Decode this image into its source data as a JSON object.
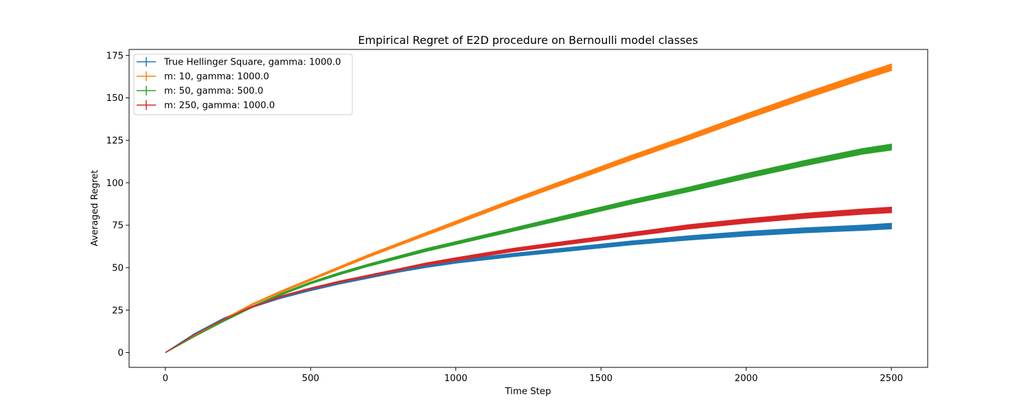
{
  "chart_data": {
    "type": "line",
    "title": "Empirical Regret of E2D procedure on Bernoulli model classes",
    "xlabel": "Time Step",
    "ylabel": "Averaged Regret",
    "xlim": [
      -125,
      2625
    ],
    "ylim": [
      -8.7,
      178.5
    ],
    "xticks": [
      0,
      500,
      1000,
      1500,
      2000,
      2500
    ],
    "yticks": [
      0,
      25,
      50,
      75,
      100,
      125,
      150,
      175
    ],
    "grid": false,
    "legend_position": "top-left",
    "x": [
      0,
      100,
      200,
      300,
      400,
      500,
      600,
      700,
      800,
      900,
      1000,
      1200,
      1400,
      1600,
      1800,
      2000,
      2200,
      2400,
      2500
    ],
    "series": [
      {
        "name": "True Hellinger Square, gamma: 1000.0",
        "color": "#1f77b4",
        "values": [
          0,
          11,
          20,
          27,
          32.5,
          37,
          41,
          44.5,
          48,
          51,
          53.5,
          57.5,
          61,
          64.5,
          67.5,
          70,
          72,
          73.5,
          74.5
        ],
        "err_low": [
          0,
          0.1,
          0.2,
          0.3,
          0.4,
          0.5,
          0.6,
          0.65,
          0.7,
          0.8,
          0.8,
          0.9,
          1.0,
          1.1,
          1.2,
          1.3,
          1.4,
          1.5,
          1.6
        ],
        "err_high": [
          0,
          0.1,
          0.2,
          0.3,
          0.4,
          0.5,
          0.6,
          0.65,
          0.7,
          0.8,
          0.8,
          0.9,
          1.0,
          1.1,
          1.2,
          1.3,
          1.4,
          1.5,
          1.6
        ]
      },
      {
        "name": "m: 10, gamma: 1000.0",
        "color": "#ff7f0e",
        "values": [
          0,
          10,
          19.5,
          28.5,
          36,
          43,
          50,
          57,
          63.5,
          70,
          76.5,
          89.5,
          102,
          114.5,
          126.5,
          139,
          151,
          162.5,
          168
        ],
        "err_low": [
          0,
          0.1,
          0.2,
          0.3,
          0.4,
          0.5,
          0.6,
          0.7,
          0.7,
          0.8,
          0.9,
          1.0,
          1.2,
          1.3,
          1.4,
          1.5,
          1.7,
          1.8,
          1.9
        ],
        "err_high": [
          0,
          0.1,
          0.2,
          0.3,
          0.4,
          0.5,
          0.6,
          0.7,
          0.7,
          0.8,
          0.9,
          1.0,
          1.2,
          1.3,
          1.4,
          1.5,
          1.7,
          1.8,
          1.9
        ]
      },
      {
        "name": "m: 50, gamma: 500.0",
        "color": "#2ca02c",
        "values": [
          0,
          9.5,
          18.5,
          27,
          34.5,
          41,
          46.5,
          51.5,
          56,
          60.5,
          64.5,
          72.5,
          80.5,
          88.5,
          96,
          104,
          111.5,
          118.5,
          121
        ],
        "err_low": [
          0,
          0.1,
          0.2,
          0.3,
          0.4,
          0.5,
          0.6,
          0.6,
          0.7,
          0.8,
          0.8,
          0.9,
          1.1,
          1.2,
          1.3,
          1.4,
          1.5,
          1.6,
          1.7
        ],
        "err_high": [
          0,
          0.1,
          0.2,
          0.3,
          0.4,
          0.5,
          0.6,
          0.6,
          0.7,
          0.8,
          0.8,
          0.9,
          1.1,
          1.2,
          1.3,
          1.4,
          1.5,
          1.6,
          1.7
        ]
      },
      {
        "name": "m: 250, gamma: 1000.0",
        "color": "#d62728",
        "values": [
          0,
          10.5,
          19.5,
          27,
          33,
          37.5,
          41.5,
          45,
          48.5,
          52,
          55,
          60.5,
          65,
          69.5,
          74,
          77.5,
          80.5,
          83,
          84
        ],
        "err_low": [
          0,
          0.1,
          0.2,
          0.3,
          0.4,
          0.5,
          0.6,
          0.65,
          0.7,
          0.8,
          0.8,
          0.9,
          1.0,
          1.1,
          1.2,
          1.3,
          1.4,
          1.5,
          1.6
        ],
        "err_high": [
          0,
          0.1,
          0.2,
          0.3,
          0.4,
          0.5,
          0.6,
          0.65,
          0.7,
          0.8,
          0.8,
          0.9,
          1.0,
          1.1,
          1.2,
          1.3,
          1.4,
          1.5,
          1.6
        ]
      }
    ]
  }
}
